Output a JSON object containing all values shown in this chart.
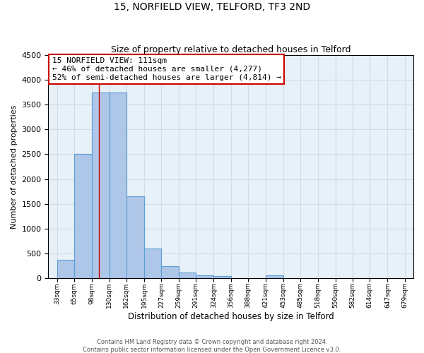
{
  "title1": "15, NORFIELD VIEW, TELFORD, TF3 2ND",
  "title2": "Size of property relative to detached houses in Telford",
  "xlabel": "Distribution of detached houses by size in Telford",
  "ylabel": "Number of detached properties",
  "footer1": "Contains HM Land Registry data © Crown copyright and database right 2024.",
  "footer2": "Contains public sector information licensed under the Open Government Licence v3.0.",
  "bins": [
    33,
    65,
    98,
    130,
    162,
    195,
    227,
    259,
    291,
    324,
    356,
    388,
    421,
    453,
    485,
    518,
    550,
    582,
    614,
    647,
    679
  ],
  "values": [
    370,
    2500,
    3750,
    3750,
    1650,
    600,
    245,
    105,
    60,
    40,
    0,
    0,
    55,
    0,
    0,
    0,
    0,
    0,
    0,
    0
  ],
  "bar_color": "#aec6e8",
  "bar_edge_color": "#5a9fd4",
  "property_size": 111,
  "red_line_color": "#cc0000",
  "annotation_line1": "15 NORFIELD VIEW: 111sqm",
  "annotation_line2": "← 46% of detached houses are smaller (4,277)",
  "annotation_line3": "52% of semi-detached houses are larger (4,814) →",
  "annotation_box_color": "#ffffff",
  "annotation_box_edge_color": "#cc0000",
  "ylim": [
    0,
    4500
  ],
  "yticks": [
    0,
    500,
    1000,
    1500,
    2000,
    2500,
    3000,
    3500,
    4000,
    4500
  ],
  "grid_color": "#d0dce8",
  "bg_color": "#e8f0f8"
}
